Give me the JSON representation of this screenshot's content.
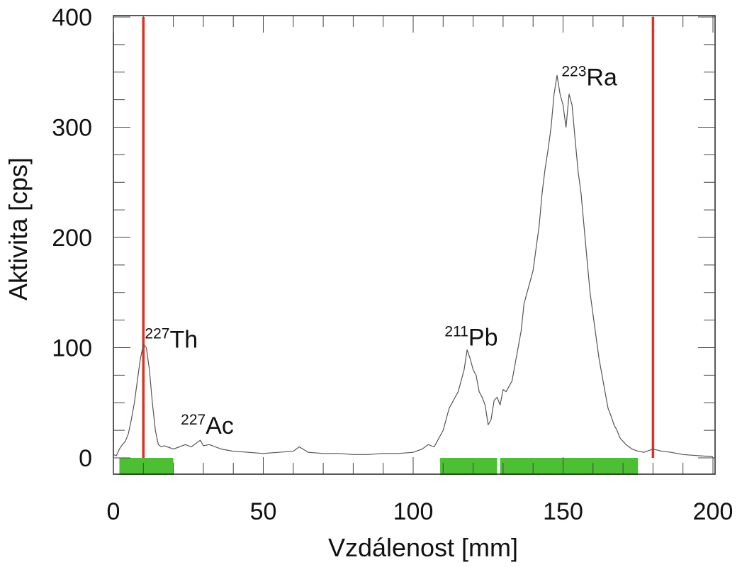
{
  "chart_data": {
    "type": "line",
    "title": "",
    "xlabel": "Vzdálenost [mm]",
    "ylabel": "Aktivita [cps]",
    "xlim": [
      0,
      200
    ],
    "ylim": [
      -15,
      400
    ],
    "xticks": [
      0,
      50,
      100,
      150,
      200
    ],
    "yticks": [
      0,
      100,
      200,
      300,
      400
    ],
    "grid": false,
    "colors": {
      "line": "#555555",
      "markers": "#e03020",
      "bands": "#4dbf35"
    },
    "series": [
      {
        "x": [
          0,
          1,
          2,
          3,
          4,
          5,
          6,
          7,
          8,
          9,
          10,
          11,
          12,
          13,
          14,
          15,
          16,
          17,
          18,
          19,
          20,
          22,
          24,
          26,
          28,
          29,
          30,
          32,
          34,
          36,
          38,
          40,
          45,
          50,
          55,
          60,
          62,
          65,
          70,
          75,
          80,
          85,
          90,
          95,
          100,
          103,
          105,
          107,
          108,
          110,
          111,
          112,
          113,
          114,
          115,
          116,
          117,
          118,
          119,
          120,
          121,
          122,
          123,
          124,
          125,
          126,
          127,
          128,
          129,
          130,
          131,
          132,
          133,
          134,
          135,
          136,
          137,
          138,
          139,
          140,
          141,
          142,
          143,
          144,
          145,
          146,
          147,
          148,
          149,
          150,
          151,
          152,
          153,
          154,
          155,
          156,
          157,
          158,
          159,
          160,
          161,
          162,
          163,
          164,
          165,
          166,
          167,
          168,
          169,
          170,
          171,
          172,
          173,
          174,
          175,
          177,
          180,
          183,
          186,
          190,
          195,
          200
        ],
        "y": [
          3,
          2,
          8,
          12,
          15,
          22,
          35,
          50,
          70,
          90,
          103,
          100,
          80,
          50,
          25,
          12,
          10,
          11,
          10,
          9,
          8,
          10,
          12,
          10,
          14,
          16,
          11,
          12,
          10,
          8,
          7,
          6,
          5,
          4,
          5,
          6,
          10,
          5,
          4,
          4,
          3,
          3,
          4,
          4,
          5,
          8,
          12,
          10,
          15,
          25,
          35,
          45,
          50,
          55,
          60,
          70,
          80,
          98,
          90,
          80,
          75,
          60,
          55,
          48,
          30,
          35,
          52,
          55,
          48,
          62,
          60,
          65,
          70,
          85,
          100,
          115,
          140,
          150,
          160,
          170,
          190,
          210,
          240,
          262,
          280,
          300,
          330,
          347,
          330,
          320,
          300,
          330,
          320,
          290,
          260,
          240,
          210,
          180,
          150,
          130,
          110,
          90,
          75,
          60,
          45,
          38,
          30,
          25,
          18,
          15,
          12,
          10,
          8,
          7,
          6,
          5,
          8,
          6,
          5,
          3,
          2,
          1
        ]
      }
    ],
    "vlines": [
      10,
      180
    ],
    "bands": [
      [
        2,
        20
      ],
      [
        109,
        128
      ],
      [
        129,
        175
      ]
    ],
    "annotations": [
      {
        "sup": "227",
        "text": "Th",
        "x": 10.5,
        "y": 100
      },
      {
        "sup": "227",
        "text": "Ac",
        "x": 22.5,
        "y": 22
      },
      {
        "sup": "211",
        "text": "Pb",
        "x": 110.5,
        "y": 102
      },
      {
        "sup": "223",
        "text": "Ra",
        "x": 149.5,
        "y": 338
      }
    ]
  }
}
